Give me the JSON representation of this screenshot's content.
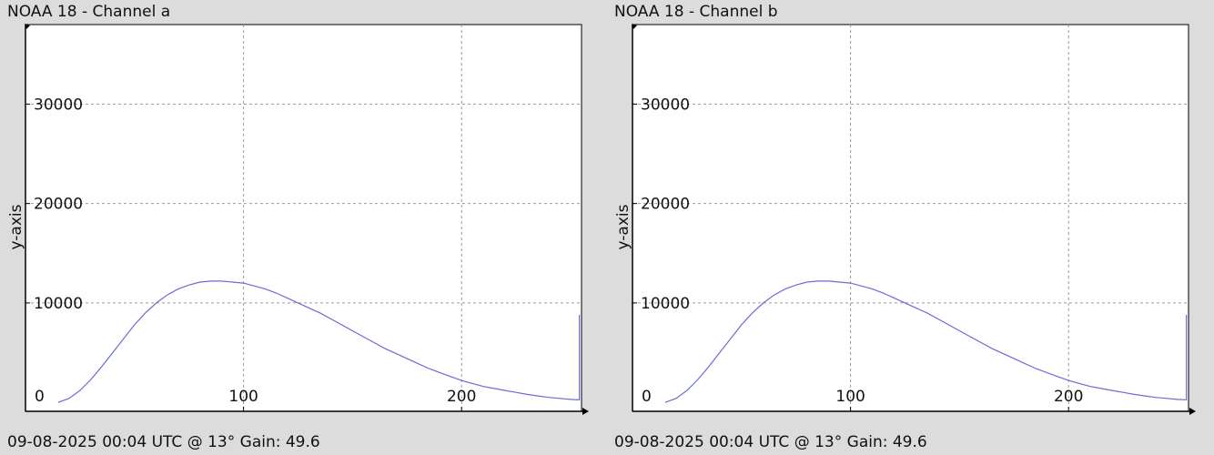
{
  "colors": {
    "line": "#6b6bd9",
    "grid": "#9a9a9a",
    "axis": "#000000",
    "plot_bg": "#ffffff",
    "page_bg": "#dcdcdc"
  },
  "chart_data": [
    {
      "type": "line",
      "title": "NOAA 18 - Channel a",
      "footer": "09-08-2025 00:04 UTC @ 13° Gain: 49.6",
      "xlabel": "",
      "ylabel": "y-axis",
      "xlim": [
        0,
        255
      ],
      "ylim": [
        -900,
        38000
      ],
      "x_ticks": [
        0,
        100,
        200
      ],
      "y_ticks": [
        10000,
        20000,
        30000
      ],
      "grid": true,
      "series": [
        {
          "x": [
            15,
            20,
            25,
            30,
            35,
            40,
            45,
            50,
            55,
            60,
            65,
            70,
            75,
            80,
            85,
            90,
            95,
            100,
            105,
            110,
            115,
            120,
            125,
            130,
            135,
            140,
            145,
            150,
            155,
            160,
            165,
            170,
            175,
            180,
            185,
            190,
            195,
            200,
            205,
            210,
            215,
            220,
            225,
            230,
            235,
            240,
            245,
            250,
            254,
            254
          ],
          "y": [
            0,
            400,
            1200,
            2300,
            3600,
            5000,
            6400,
            7800,
            9000,
            10000,
            10800,
            11400,
            11800,
            12100,
            12200,
            12200,
            12100,
            12000,
            11700,
            11400,
            11000,
            10500,
            10000,
            9500,
            9000,
            8400,
            7800,
            7200,
            6600,
            6000,
            5400,
            4900,
            4400,
            3900,
            3400,
            3000,
            2600,
            2200,
            1900,
            1600,
            1400,
            1200,
            1000,
            800,
            650,
            500,
            400,
            300,
            250,
            8800
          ]
        }
      ]
    },
    {
      "type": "line",
      "title": "NOAA 18 - Channel b",
      "footer": "09-08-2025 00:04 UTC @ 13° Gain: 49.6",
      "xlabel": "",
      "ylabel": "y-axis",
      "xlim": [
        0,
        255
      ],
      "ylim": [
        -900,
        38000
      ],
      "x_ticks": [
        0,
        100,
        200
      ],
      "y_ticks": [
        10000,
        20000,
        30000
      ],
      "grid": true,
      "series": [
        {
          "x": [
            15,
            20,
            25,
            30,
            35,
            40,
            45,
            50,
            55,
            60,
            65,
            70,
            75,
            80,
            85,
            90,
            95,
            100,
            105,
            110,
            115,
            120,
            125,
            130,
            135,
            140,
            145,
            150,
            155,
            160,
            165,
            170,
            175,
            180,
            185,
            190,
            195,
            200,
            205,
            210,
            215,
            220,
            225,
            230,
            235,
            240,
            245,
            250,
            254,
            254
          ],
          "y": [
            0,
            400,
            1200,
            2300,
            3600,
            5000,
            6400,
            7800,
            9000,
            10000,
            10800,
            11400,
            11800,
            12100,
            12200,
            12200,
            12100,
            12000,
            11700,
            11400,
            11000,
            10500,
            10000,
            9500,
            9000,
            8400,
            7800,
            7200,
            6600,
            6000,
            5400,
            4900,
            4400,
            3900,
            3400,
            3000,
            2600,
            2200,
            1900,
            1600,
            1400,
            1200,
            1000,
            800,
            650,
            500,
            400,
            300,
            250,
            8800
          ]
        }
      ]
    }
  ]
}
